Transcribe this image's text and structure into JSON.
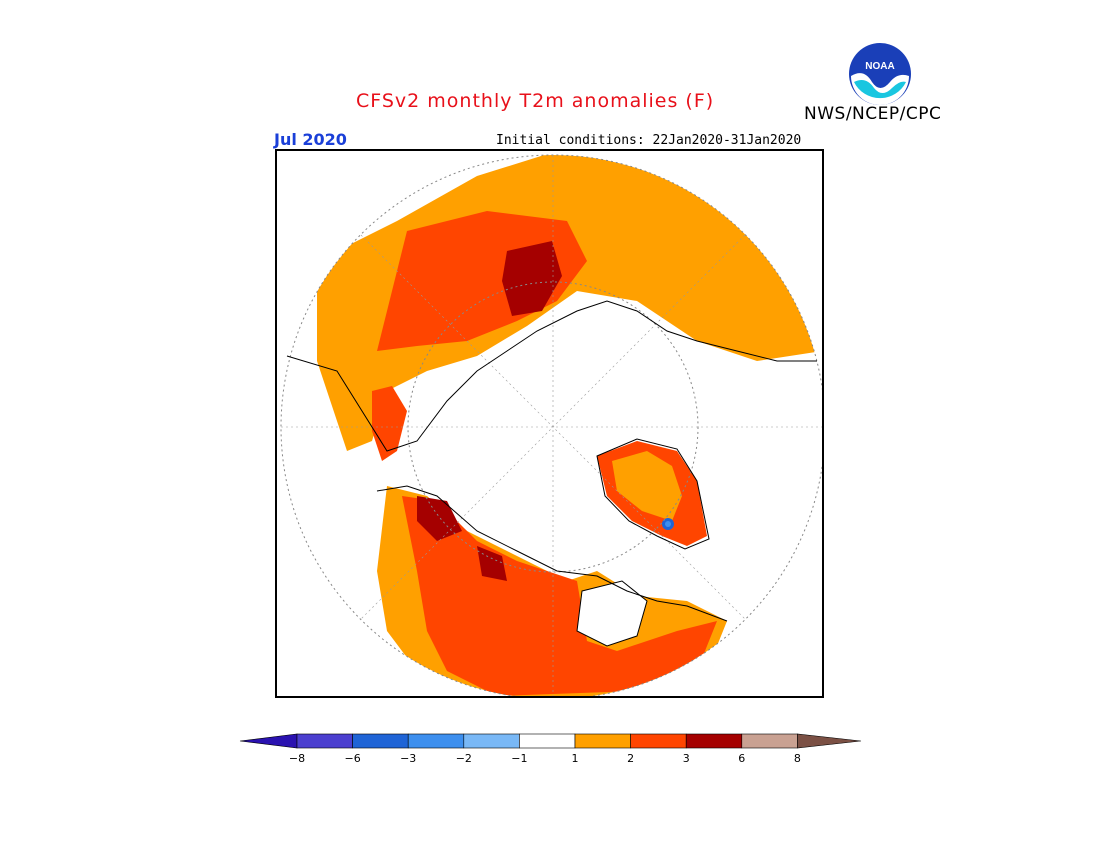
{
  "header": {
    "title": "CFSv2 monthly T2m anomalies (F)",
    "period": "Jul 2020",
    "initial_conditions": "Initial conditions: 22Jan2020-31Jan2020",
    "agency": "NWS/NCEP/CPC",
    "logo_text": "NOAA"
  },
  "colorbar": {
    "bins": [
      {
        "color": "#2a12b0"
      },
      {
        "color": "#4b3fcf"
      },
      {
        "color": "#1f64d6"
      },
      {
        "color": "#3d8fee"
      },
      {
        "color": "#79b8f6"
      },
      {
        "color": "#ffffff"
      },
      {
        "color": "#ffa000"
      },
      {
        "color": "#ff4500"
      },
      {
        "color": "#a50000"
      },
      {
        "color": "#c9a192"
      },
      {
        "color": "#7b5044"
      }
    ],
    "labels": [
      "−8",
      "−6",
      "−3",
      "−2",
      "−1",
      "1",
      "2",
      "3",
      "6",
      "8"
    ]
  },
  "colors": {
    "title": "#e8101a",
    "period": "#1a3fd8",
    "anomaly_1_2": "#ffa000",
    "anomaly_2_3": "#ff4500",
    "anomaly_3_6": "#a50000",
    "anomaly_neg": "#1f64d6"
  }
}
